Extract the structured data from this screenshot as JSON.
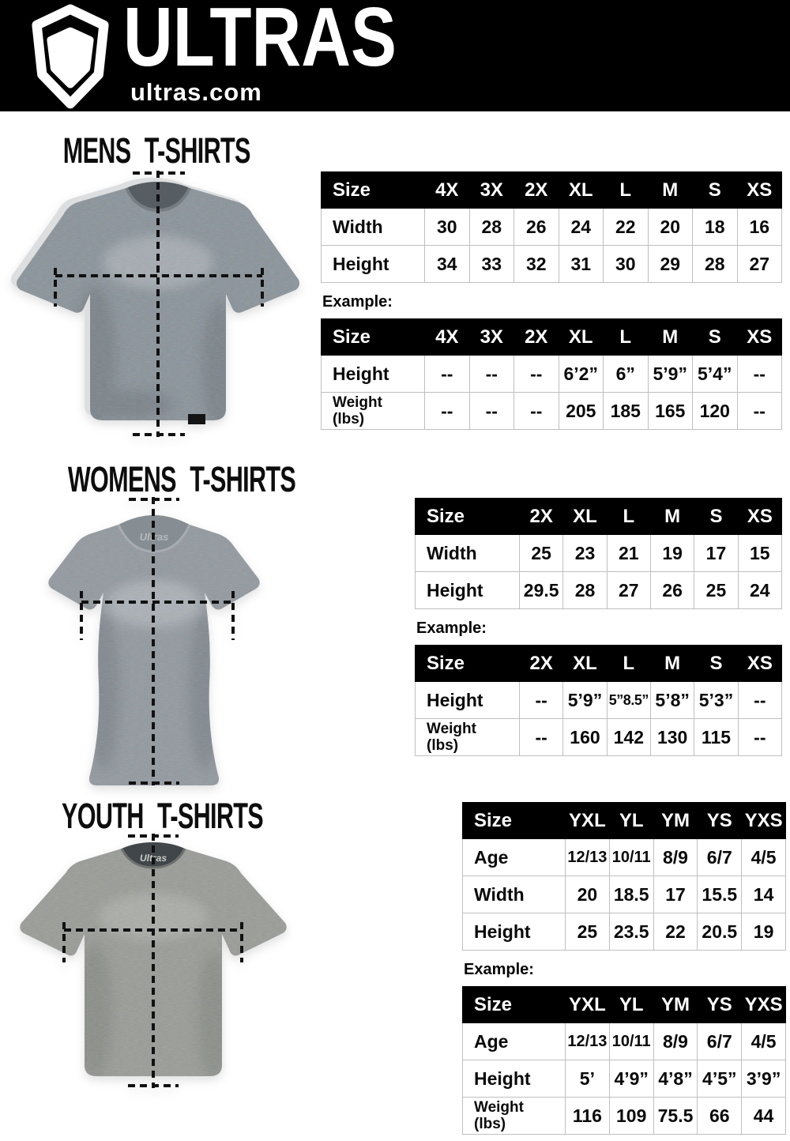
{
  "header": {
    "brand": "ULTRAS",
    "site": "ultras.com",
    "logo_icon": "pentagon-crest-icon"
  },
  "colors": {
    "header_bg": "#000000",
    "table_header_bg": "#000000",
    "table_header_text": "#ffffff",
    "shirt_mens": "#8b949b",
    "shirt_womens": "#939aa0",
    "shirt_youth": "#999c97",
    "measure_line": "#111111"
  },
  "mens": {
    "title": "MENS T-SHIRTS",
    "example_label": "Example:",
    "size_table": {
      "columns": [
        "Size",
        "4X",
        "3X",
        "2X",
        "XL",
        "L",
        "M",
        "S",
        "XS"
      ],
      "rows": [
        {
          "label": "Width",
          "values": [
            "30",
            "28",
            "26",
            "24",
            "22",
            "20",
            "18",
            "16"
          ]
        },
        {
          "label": "Height",
          "values": [
            "34",
            "33",
            "32",
            "31",
            "30",
            "29",
            "28",
            "27"
          ]
        }
      ]
    },
    "example_table": {
      "columns": [
        "Size",
        "4X",
        "3X",
        "2X",
        "XL",
        "L",
        "M",
        "S",
        "XS"
      ],
      "rows": [
        {
          "label": "Height",
          "values": [
            "--",
            "--",
            "--",
            "6’2”",
            "6”",
            "5’9”",
            "5’4”",
            "--"
          ]
        },
        {
          "label": "Weight\n(lbs)",
          "values": [
            "--",
            "--",
            "--",
            "205",
            "185",
            "165",
            "120",
            "--"
          ]
        }
      ]
    }
  },
  "womens": {
    "title": "WOMENS T-SHIRTS",
    "example_label": "Example:",
    "size_table": {
      "columns": [
        "Size",
        "2X",
        "XL",
        "L",
        "M",
        "S",
        "XS"
      ],
      "rows": [
        {
          "label": "Width",
          "values": [
            "25",
            "23",
            "21",
            "19",
            "17",
            "15"
          ]
        },
        {
          "label": "Height",
          "values": [
            "29.5",
            "28",
            "27",
            "26",
            "25",
            "24"
          ]
        }
      ]
    },
    "example_table": {
      "columns": [
        "Size",
        "2X",
        "XL",
        "L",
        "M",
        "S",
        "XS"
      ],
      "rows": [
        {
          "label": "Height",
          "values": [
            "--",
            "5’9”",
            "5”8.5”",
            "5’8”",
            "5’3”",
            "--"
          ]
        },
        {
          "label": "Weight\n(lbs)",
          "values": [
            "--",
            "160",
            "142",
            "130",
            "115",
            "--"
          ]
        }
      ]
    }
  },
  "youth": {
    "title": "YOUTH T-SHIRTS",
    "example_label": "Example:",
    "size_table": {
      "columns": [
        "Size",
        "YXL",
        "YL",
        "YM",
        "YS",
        "YXS"
      ],
      "rows": [
        {
          "label": "Age",
          "values": [
            "12/13",
            "10/11",
            "8/9",
            "6/7",
            "4/5"
          ]
        },
        {
          "label": "Width",
          "values": [
            "20",
            "18.5",
            "17",
            "15.5",
            "14"
          ]
        },
        {
          "label": "Height",
          "values": [
            "25",
            "23.5",
            "22",
            "20.5",
            "19"
          ]
        }
      ]
    },
    "example_table": {
      "columns": [
        "Size",
        "YXL",
        "YL",
        "YM",
        "YS",
        "YXS"
      ],
      "rows": [
        {
          "label": "Age",
          "values": [
            "12/13",
            "10/11",
            "8/9",
            "6/7",
            "4/5"
          ]
        },
        {
          "label": "Height",
          "values": [
            "5’",
            "4’9”",
            "4’8”",
            "4’5”",
            "3’9”"
          ]
        },
        {
          "label": "Weight\n(lbs)",
          "values": [
            "116",
            "109",
            "75.5",
            "66",
            "44"
          ]
        }
      ]
    }
  }
}
